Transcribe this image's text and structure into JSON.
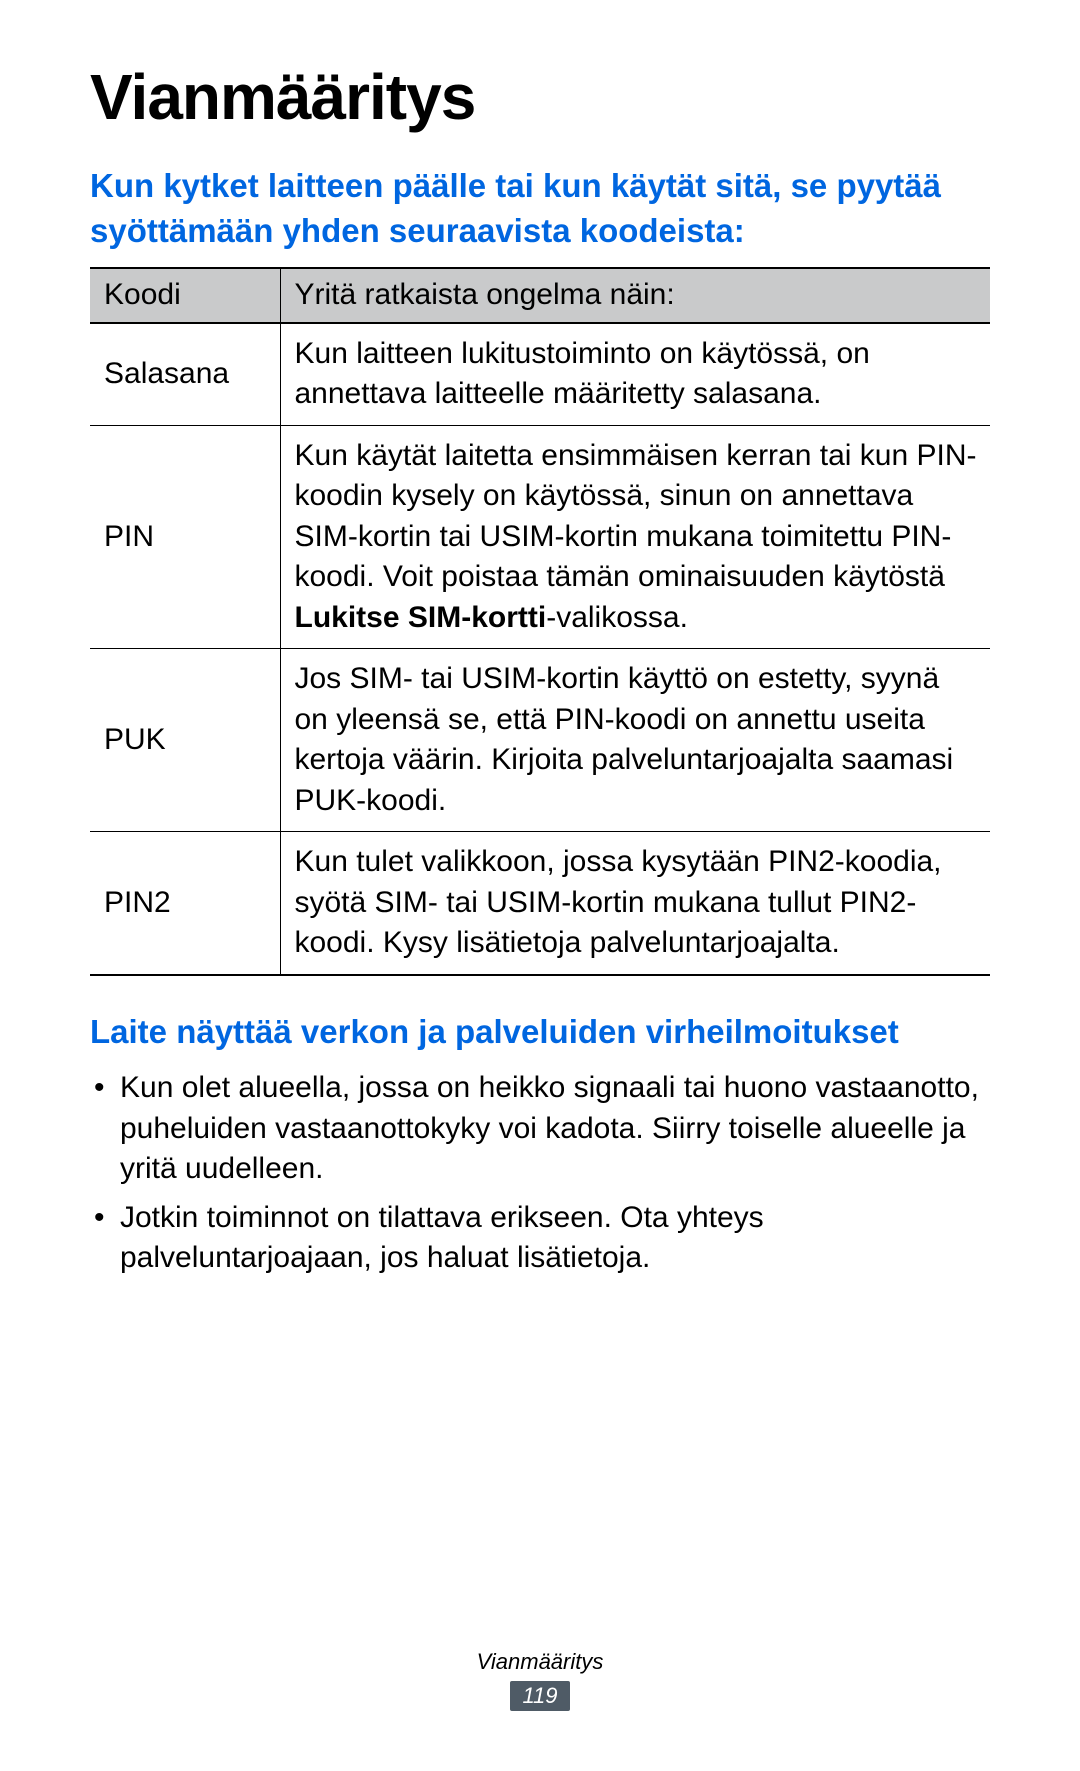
{
  "colors": {
    "heading_blue": "#0066e0",
    "table_header_bg": "#c9cacb",
    "page_badge_bg": "#4f5b66",
    "page_badge_text": "#ffffff",
    "text": "#000000",
    "background": "#ffffff"
  },
  "title": "Vianmääritys",
  "section1": {
    "heading": "Kun kytket laitteen päälle tai kun käytät sitä, se pyytää syöttämään yhden seuraavista koodeista:"
  },
  "table": {
    "header": {
      "code": "Koodi",
      "solution": "Yritä ratkaista ongelma näin:"
    },
    "rows": [
      {
        "code": "Salasana",
        "solution_pre": "Kun laitteen lukitustoiminto on käytössä, on annettava laitteelle määritetty salasana.",
        "solution_bold": "",
        "solution_post": ""
      },
      {
        "code": "PIN",
        "solution_pre": "Kun käytät laitetta ensimmäisen kerran tai kun PIN-koodin kysely on käytössä, sinun on annettava SIM-kortin tai USIM-kortin mukana toimitettu PIN-koodi. Voit poistaa tämän ominaisuuden käytöstä ",
        "solution_bold": "Lukitse SIM-kortti",
        "solution_post": "-valikossa."
      },
      {
        "code": "PUK",
        "solution_pre": "Jos SIM- tai USIM-kortin käyttö on estetty, syynä on yleensä se, että PIN-koodi on annettu useita kertoja väärin. Kirjoita palveluntarjoajalta saamasi PUK-koodi.",
        "solution_bold": "",
        "solution_post": ""
      },
      {
        "code": "PIN2",
        "solution_pre": "Kun tulet valikkoon, jossa kysytään PIN2-koodia, syötä SIM- tai USIM-kortin mukana tullut PIN2-koodi. Kysy lisätietoja palveluntarjoajalta.",
        "solution_bold": "",
        "solution_post": ""
      }
    ]
  },
  "section2": {
    "heading": "Laite näyttää verkon ja palveluiden virheilmoitukset",
    "bullets": [
      "Kun olet alueella, jossa on heikko signaali tai huono vastaanotto, puheluiden vastaanottokyky voi kadota. Siirry toiselle alueelle ja yritä uudelleen.",
      "Jotkin toiminnot on tilattava erikseen. Ota yhteys palveluntarjoajaan, jos haluat lisätietoja."
    ]
  },
  "footer": {
    "label": "Vianmääritys",
    "page": "119"
  }
}
